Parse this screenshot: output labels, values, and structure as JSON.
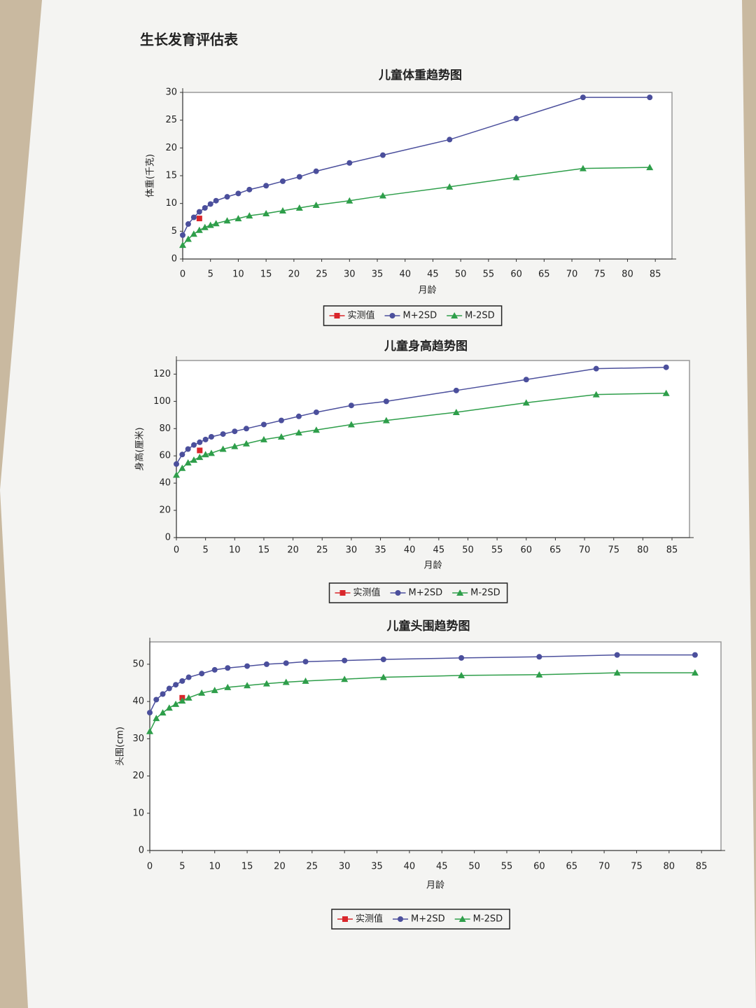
{
  "header": {
    "title": "生长发育评估表"
  },
  "chart_data": [
    {
      "type": "line",
      "title": "儿童体重趋势图",
      "x_label": "月龄",
      "y_label": "体重(千克)",
      "x": [
        0,
        1,
        2,
        3,
        4,
        5,
        6,
        8,
        10,
        12,
        15,
        18,
        21,
        24,
        30,
        36,
        48,
        60,
        72,
        84
      ],
      "xlim": [
        0,
        88
      ],
      "xticks": [
        0,
        5,
        10,
        15,
        20,
        25,
        30,
        35,
        40,
        45,
        50,
        55,
        60,
        65,
        70,
        75,
        80,
        85
      ],
      "ylim": [
        0,
        30
      ],
      "yticks": [
        0,
        5,
        10,
        15,
        20,
        25,
        30
      ],
      "series": [
        {
          "name": "实测值",
          "color": "#d9262b",
          "marker": "square",
          "values": [
            null,
            null,
            null,
            7.3,
            null,
            null,
            null,
            null,
            null,
            null,
            null,
            null,
            null,
            null,
            null,
            null,
            null,
            null,
            null,
            null
          ]
        },
        {
          "name": "M+2SD",
          "color": "#4b4f9c",
          "marker": "circle",
          "values": [
            4.3,
            6.3,
            7.5,
            8.5,
            9.2,
            9.9,
            10.5,
            11.2,
            11.8,
            12.5,
            13.2,
            14,
            14.8,
            15.8,
            17.3,
            18.7,
            21.5,
            25.3,
            29.1,
            29.1
          ]
        },
        {
          "name": "M-2SD",
          "color": "#2e9e4a",
          "marker": "triangle",
          "values": [
            2.5,
            3.6,
            4.5,
            5.2,
            5.7,
            6.1,
            6.4,
            6.9,
            7.3,
            7.8,
            8.2,
            8.7,
            9.2,
            9.7,
            10.5,
            11.4,
            13,
            14.7,
            16.3,
            16.5
          ]
        }
      ]
    },
    {
      "type": "line",
      "title": "儿童身高趋势图",
      "x_label": "月龄",
      "y_label": "身高(厘米)",
      "x": [
        0,
        1,
        2,
        3,
        4,
        5,
        6,
        8,
        10,
        12,
        15,
        18,
        21,
        24,
        30,
        36,
        48,
        60,
        72,
        84
      ],
      "xlim": [
        0,
        88
      ],
      "xticks": [
        0,
        5,
        10,
        15,
        20,
        25,
        30,
        35,
        40,
        45,
        50,
        55,
        60,
        65,
        70,
        75,
        80,
        85
      ],
      "ylim": [
        0,
        130
      ],
      "yticks": [
        0,
        20,
        40,
        60,
        80,
        100,
        120
      ],
      "series": [
        {
          "name": "实测值",
          "color": "#d9262b",
          "marker": "square",
          "values": [
            null,
            null,
            null,
            null,
            64,
            null,
            null,
            null,
            null,
            null,
            null,
            null,
            null,
            null,
            null,
            null,
            null,
            null,
            null,
            null
          ]
        },
        {
          "name": "M+2SD",
          "color": "#4b4f9c",
          "marker": "circle",
          "values": [
            54,
            61,
            65,
            68,
            70,
            72,
            74,
            76,
            78,
            80,
            83,
            86,
            89,
            92,
            97,
            100,
            108,
            116,
            124,
            125
          ]
        },
        {
          "name": "M-2SD",
          "color": "#2e9e4a",
          "marker": "triangle",
          "values": [
            46,
            51,
            55,
            57,
            59,
            61,
            62,
            65,
            67,
            69,
            72,
            74,
            77,
            79,
            83,
            86,
            92,
            99,
            105,
            106
          ]
        }
      ]
    },
    {
      "type": "line",
      "title": "儿童头围趋势图",
      "x_label": "月龄",
      "y_label": "头围(cm)",
      "x": [
        0,
        1,
        2,
        3,
        4,
        5,
        6,
        8,
        10,
        12,
        15,
        18,
        21,
        24,
        30,
        36,
        48,
        60,
        72,
        84
      ],
      "xlim": [
        0,
        88
      ],
      "xticks": [
        0,
        5,
        10,
        15,
        20,
        25,
        30,
        35,
        40,
        45,
        50,
        55,
        60,
        65,
        70,
        75,
        80,
        85
      ],
      "ylim": [
        0,
        56
      ],
      "yticks": [
        0,
        10,
        20,
        30,
        40,
        50
      ],
      "series": [
        {
          "name": "实测值",
          "color": "#d9262b",
          "marker": "square",
          "values": [
            null,
            null,
            null,
            null,
            null,
            41,
            null,
            null,
            null,
            null,
            null,
            null,
            null,
            null,
            null,
            null,
            null,
            null,
            null,
            null
          ]
        },
        {
          "name": "M+2SD",
          "color": "#4b4f9c",
          "marker": "circle",
          "values": [
            37,
            40.5,
            42,
            43.5,
            44.5,
            45.5,
            46.5,
            47.5,
            48.5,
            49,
            49.5,
            50,
            50.3,
            50.7,
            51,
            51.3,
            51.7,
            52,
            52.5,
            52.5
          ]
        },
        {
          "name": "M-2SD",
          "color": "#2e9e4a",
          "marker": "triangle",
          "values": [
            32,
            35.5,
            37,
            38.3,
            39.3,
            40.2,
            41,
            42.3,
            43,
            43.8,
            44.3,
            44.8,
            45.2,
            45.5,
            46,
            46.5,
            47,
            47.2,
            47.7,
            47.7
          ]
        }
      ]
    }
  ]
}
